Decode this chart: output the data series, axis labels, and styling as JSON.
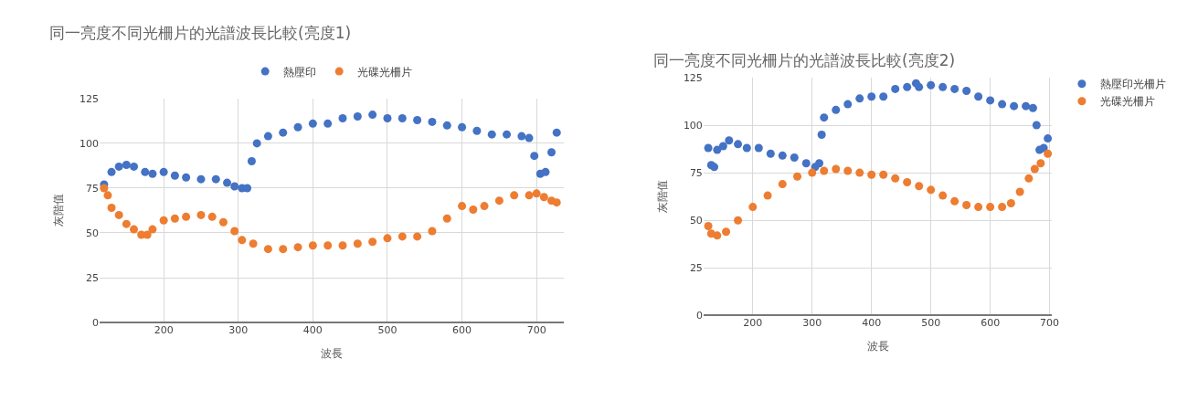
{
  "chart_data": [
    {
      "type": "scatter",
      "title": "同一亮度不同光柵片的光譜波長比較(亮度1)",
      "xlabel": "波長",
      "ylabel": "灰階值",
      "xlim": [
        114,
        737
      ],
      "xticks": [
        200,
        300,
        400,
        500,
        600,
        700
      ],
      "ylim": [
        0,
        125
      ],
      "yticks": [
        0,
        25,
        50,
        75,
        100,
        125
      ],
      "grid": true,
      "legend": "top",
      "marker": "circle",
      "series": [
        {
          "name": "熱壓印",
          "color": "#4472c4",
          "x": [
            120,
            130,
            140,
            150,
            160,
            175,
            185,
            200,
            215,
            230,
            250,
            270,
            285,
            295,
            305,
            312,
            318,
            325,
            340,
            360,
            380,
            400,
            420,
            440,
            460,
            480,
            500,
            520,
            540,
            560,
            580,
            600,
            620,
            640,
            660,
            680,
            690,
            697,
            705,
            712,
            720,
            727
          ],
          "values": [
            77,
            84,
            87,
            88,
            87,
            84,
            83,
            84,
            82,
            81,
            80,
            80,
            78,
            76,
            75,
            75,
            90,
            100,
            104,
            106,
            109,
            111,
            111,
            114,
            115,
            116,
            114,
            114,
            113,
            112,
            110,
            109,
            107,
            105,
            105,
            104,
            103,
            93,
            83,
            84,
            95,
            106
          ]
        },
        {
          "name": "光碟光柵片",
          "color": "#ed7d31",
          "x": [
            120,
            125,
            130,
            140,
            150,
            160,
            170,
            178,
            185,
            200,
            215,
            230,
            250,
            265,
            280,
            295,
            305,
            320,
            340,
            360,
            380,
            400,
            420,
            440,
            460,
            480,
            500,
            520,
            540,
            560,
            580,
            600,
            615,
            630,
            650,
            670,
            690,
            700,
            710,
            720,
            727
          ],
          "values": [
            75,
            71,
            64,
            60,
            55,
            52,
            49,
            49,
            52,
            57,
            58,
            59,
            60,
            59,
            56,
            51,
            46,
            44,
            41,
            41,
            42,
            43,
            43,
            43,
            44,
            45,
            47,
            48,
            48,
            51,
            58,
            65,
            63,
            65,
            68,
            71,
            71,
            72,
            70,
            68,
            67
          ]
        }
      ]
    },
    {
      "type": "scatter",
      "title": "同一亮度不同光柵片的光譜波長比較(亮度2)",
      "xlabel": "波長",
      "ylabel": "灰階值",
      "xlim": [
        117,
        704
      ],
      "xticks": [
        200,
        300,
        400,
        500,
        600,
        700
      ],
      "ylim": [
        0,
        125
      ],
      "yticks": [
        0,
        25,
        50,
        75,
        100,
        125
      ],
      "grid": true,
      "legend": "top right",
      "marker": "circle",
      "series": [
        {
          "name": "熱壓印光柵片",
          "color": "#4472c4",
          "x": [
            125,
            130,
            135,
            140,
            150,
            160,
            175,
            190,
            210,
            230,
            250,
            270,
            290,
            305,
            312,
            316,
            320,
            340,
            360,
            380,
            400,
            420,
            440,
            460,
            475,
            480,
            500,
            520,
            540,
            560,
            580,
            600,
            620,
            640,
            660,
            672,
            678,
            683,
            690,
            697
          ],
          "values": [
            88,
            79,
            78,
            87,
            89,
            92,
            90,
            88,
            88,
            85,
            84,
            83,
            80,
            78,
            80,
            95,
            104,
            108,
            111,
            114,
            115,
            115,
            119,
            120,
            122,
            120,
            121,
            120,
            119,
            118,
            115,
            113,
            111,
            110,
            110,
            109,
            100,
            87,
            88,
            93
          ]
        },
        {
          "name": "光碟光柵片",
          "color": "#ed7d31",
          "x": [
            125,
            130,
            140,
            155,
            175,
            200,
            225,
            250,
            275,
            300,
            320,
            340,
            360,
            380,
            400,
            420,
            440,
            460,
            480,
            500,
            520,
            540,
            560,
            580,
            600,
            620,
            635,
            650,
            665,
            675,
            685,
            697
          ],
          "values": [
            47,
            43,
            42,
            44,
            50,
            57,
            63,
            69,
            73,
            75,
            76,
            77,
            76,
            75,
            74,
            74,
            72,
            70,
            68,
            66,
            63,
            60,
            58,
            57,
            57,
            57,
            59,
            65,
            72,
            77,
            80,
            85
          ]
        }
      ]
    }
  ]
}
